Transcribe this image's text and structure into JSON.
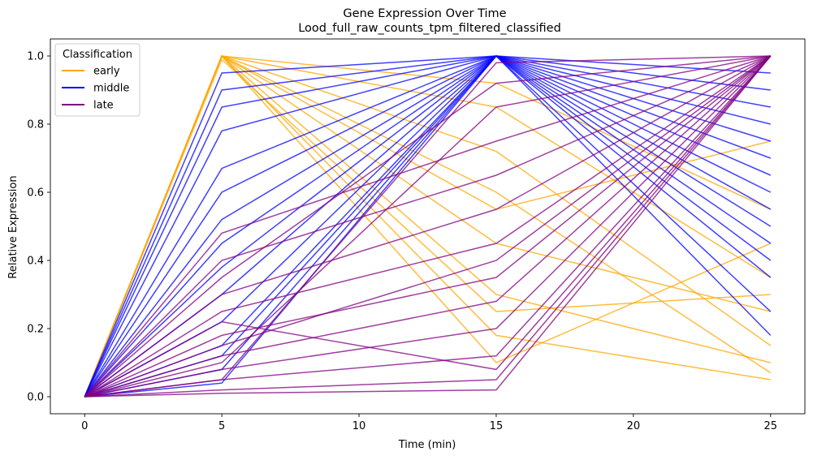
{
  "chart_data": {
    "type": "line",
    "title": "Gene Expression Over Time",
    "subtitle": "Lood_full_raw_counts_tpm_filtered_classified",
    "xlabel": "Time (min)",
    "ylabel": "Relative Expression",
    "x": [
      0,
      5,
      15,
      25
    ],
    "xlim": [
      -1.25,
      26.25
    ],
    "ylim": [
      -0.05,
      1.05
    ],
    "xticks": [
      0,
      5,
      10,
      15,
      20,
      25
    ],
    "yticks": [
      0.0,
      0.2,
      0.4,
      0.6,
      0.8,
      1.0
    ],
    "xtick_labels": [
      "0",
      "5",
      "10",
      "15",
      "20",
      "25"
    ],
    "ytick_labels": [
      "0.0",
      "0.2",
      "0.4",
      "0.6",
      "0.8",
      "1.0"
    ],
    "grid": false,
    "legend": {
      "title": "Classification",
      "placement": "top-left",
      "entries": [
        "early",
        "middle",
        "late"
      ]
    },
    "colors": {
      "early": "#ffa500",
      "middle": "#0000ff",
      "late": "#800080"
    },
    "series": [
      {
        "name": "early",
        "values": [
          0.0,
          1.0,
          0.85,
          0.35
        ]
      },
      {
        "name": "early",
        "values": [
          0.0,
          1.0,
          0.72,
          0.15
        ]
      },
      {
        "name": "early",
        "values": [
          0.0,
          1.0,
          0.6,
          0.07
        ]
      },
      {
        "name": "early",
        "values": [
          0.0,
          1.0,
          0.45,
          0.25
        ]
      },
      {
        "name": "early",
        "values": [
          0.0,
          1.0,
          0.3,
          0.1
        ]
      },
      {
        "name": "early",
        "values": [
          0.0,
          1.0,
          0.18,
          0.05
        ]
      },
      {
        "name": "early",
        "values": [
          0.0,
          1.0,
          0.1,
          0.45
        ]
      },
      {
        "name": "early",
        "values": [
          0.0,
          1.0,
          0.92,
          0.55
        ]
      },
      {
        "name": "early",
        "values": [
          0.0,
          1.0,
          0.55,
          0.75
        ]
      },
      {
        "name": "early",
        "values": [
          0.0,
          0.99,
          0.25,
          0.3
        ]
      },
      {
        "name": "middle",
        "values": [
          0.0,
          0.95,
          1.0,
          0.85
        ]
      },
      {
        "name": "middle",
        "values": [
          0.0,
          0.9,
          1.0,
          0.95
        ]
      },
      {
        "name": "middle",
        "values": [
          0.0,
          0.85,
          1.0,
          0.7
        ]
      },
      {
        "name": "middle",
        "values": [
          0.0,
          0.78,
          1.0,
          0.6
        ]
      },
      {
        "name": "middle",
        "values": [
          0.0,
          0.67,
          1.0,
          0.55
        ]
      },
      {
        "name": "middle",
        "values": [
          0.0,
          0.6,
          1.0,
          0.45
        ]
      },
      {
        "name": "middle",
        "values": [
          0.0,
          0.52,
          1.0,
          0.8
        ]
      },
      {
        "name": "middle",
        "values": [
          0.0,
          0.45,
          1.0,
          0.35
        ]
      },
      {
        "name": "middle",
        "values": [
          0.0,
          0.38,
          1.0,
          0.65
        ]
      },
      {
        "name": "middle",
        "values": [
          0.0,
          0.3,
          1.0,
          0.25
        ]
      },
      {
        "name": "middle",
        "values": [
          0.0,
          0.22,
          1.0,
          0.5
        ]
      },
      {
        "name": "middle",
        "values": [
          0.0,
          0.15,
          1.0,
          0.9
        ]
      },
      {
        "name": "middle",
        "values": [
          0.0,
          0.08,
          1.0,
          0.18
        ]
      },
      {
        "name": "middle",
        "values": [
          0.0,
          0.04,
          1.0,
          0.4
        ]
      },
      {
        "name": "middle",
        "values": [
          0.0,
          0.12,
          1.0,
          0.75
        ]
      },
      {
        "name": "late",
        "values": [
          0.0,
          0.02,
          0.05,
          1.0
        ]
      },
      {
        "name": "late",
        "values": [
          0.0,
          0.05,
          0.12,
          1.0
        ]
      },
      {
        "name": "late",
        "values": [
          0.0,
          0.08,
          0.2,
          1.0
        ]
      },
      {
        "name": "late",
        "values": [
          0.0,
          0.12,
          0.28,
          1.0
        ]
      },
      {
        "name": "late",
        "values": [
          0.0,
          0.18,
          0.35,
          1.0
        ]
      },
      {
        "name": "late",
        "values": [
          0.0,
          0.25,
          0.45,
          1.0
        ]
      },
      {
        "name": "late",
        "values": [
          0.0,
          0.3,
          0.55,
          1.0
        ]
      },
      {
        "name": "late",
        "values": [
          0.0,
          0.4,
          0.65,
          1.0
        ]
      },
      {
        "name": "late",
        "values": [
          0.0,
          0.48,
          0.75,
          1.0
        ]
      },
      {
        "name": "late",
        "values": [
          0.0,
          0.1,
          0.85,
          1.0
        ]
      },
      {
        "name": "late",
        "values": [
          0.0,
          0.35,
          0.92,
          1.0
        ]
      },
      {
        "name": "late",
        "values": [
          0.0,
          0.01,
          0.02,
          1.0
        ]
      },
      {
        "name": "late",
        "values": [
          0.0,
          0.22,
          0.08,
          1.0
        ]
      },
      {
        "name": "late",
        "values": [
          0.0,
          0.15,
          0.4,
          1.0
        ]
      },
      {
        "name": "late",
        "values": [
          0.0,
          0.05,
          0.98,
          1.0
        ]
      }
    ]
  }
}
